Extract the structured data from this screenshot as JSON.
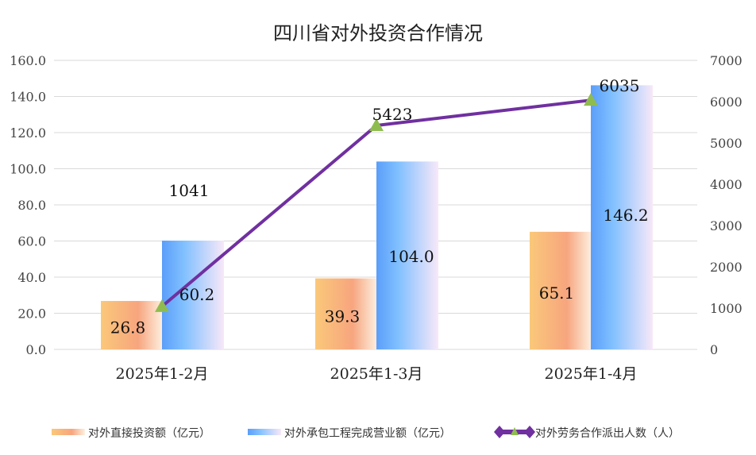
{
  "chart_data": {
    "type": "bar+line",
    "title": "四川省对外投资合作情况",
    "categories": [
      "2025年1-2月",
      "2025年1-3月",
      "2025年1-4月"
    ],
    "series": [
      {
        "name": "对外直接投资额（亿元）",
        "type": "bar",
        "axis": "left",
        "values": [
          26.8,
          39.3,
          65.1
        ],
        "labels": [
          "26.8",
          "39.3",
          "65.1"
        ],
        "colors": [
          "#fac87a",
          "#f7a57e",
          "#fdf0e0"
        ]
      },
      {
        "name": "对外承包工程完成营业额（亿元）",
        "type": "bar",
        "axis": "left",
        "values": [
          60.2,
          104.0,
          146.2
        ],
        "labels": [
          "60.2",
          "104.0",
          "146.2"
        ],
        "colors": [
          "#5b9ef9",
          "#80c0ff",
          "#f8e8f8"
        ]
      },
      {
        "name": "对外劳务合作派出人数（人）",
        "type": "line",
        "axis": "right",
        "values": [
          1041,
          5423,
          6035
        ],
        "labels": [
          "1041",
          "5423",
          "6035"
        ],
        "color": "#7030a0",
        "marker_color": "#8fbc4f"
      }
    ],
    "left_axis": {
      "ylim": [
        0,
        160
      ],
      "ticks": [
        "0.0",
        "20.0",
        "40.0",
        "60.0",
        "80.0",
        "100.0",
        "120.0",
        "140.0",
        "160.0"
      ]
    },
    "right_axis": {
      "ylim": [
        0,
        7000
      ],
      "ticks": [
        "0",
        "1000",
        "2000",
        "3000",
        "4000",
        "5000",
        "6000",
        "7000"
      ]
    },
    "grid": true,
    "legend_position": "bottom"
  }
}
